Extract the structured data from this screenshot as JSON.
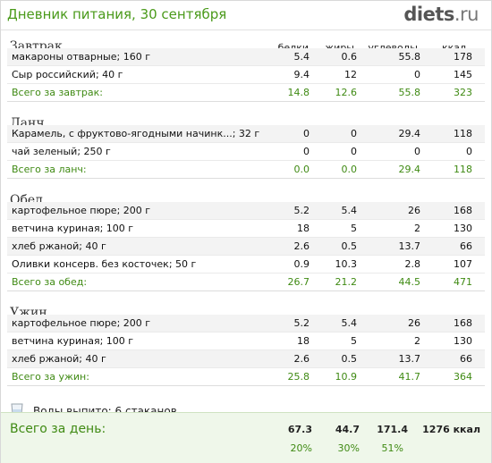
{
  "header": {
    "title": "Дневник питания, 30 сентября",
    "logo_main": "diets",
    "logo_suffix": ".ru"
  },
  "columns": {
    "protein": "белки",
    "fat": "жиры",
    "carbs": "углеводы",
    "kcal": "ккал"
  },
  "meals": [
    {
      "title": "Завтрак",
      "items": [
        {
          "name": "макароны отварные; 160 г",
          "protein": "5.4",
          "fat": "0.6",
          "carbs": "55.8",
          "kcal": "178"
        },
        {
          "name": "Сыр российский; 40 г",
          "protein": "9.4",
          "fat": "12",
          "carbs": "0",
          "kcal": "145"
        }
      ],
      "total": {
        "label": "Всего за завтрак:",
        "protein": "14.8",
        "fat": "12.6",
        "carbs": "55.8",
        "kcal": "323"
      }
    },
    {
      "title": "Ланч",
      "items": [
        {
          "name": "Карамель, с фруктово-ягодными начинк...; 32 г",
          "protein": "0",
          "fat": "0",
          "carbs": "29.4",
          "kcal": "118"
        },
        {
          "name": "чай зеленый; 250 г",
          "protein": "0",
          "fat": "0",
          "carbs": "0",
          "kcal": "0"
        }
      ],
      "total": {
        "label": "Всего за ланч:",
        "protein": "0.0",
        "fat": "0.0",
        "carbs": "29.4",
        "kcal": "118"
      }
    },
    {
      "title": "Обед",
      "items": [
        {
          "name": "картофельное пюре; 200 г",
          "protein": "5.2",
          "fat": "5.4",
          "carbs": "26",
          "kcal": "168"
        },
        {
          "name": "ветчина куриная; 100 г",
          "protein": "18",
          "fat": "5",
          "carbs": "2",
          "kcal": "130"
        },
        {
          "name": "хлеб ржаной; 40 г",
          "protein": "2.6",
          "fat": "0.5",
          "carbs": "13.7",
          "kcal": "66"
        },
        {
          "name": "Оливки консерв. без косточек; 50 г",
          "protein": "0.9",
          "fat": "10.3",
          "carbs": "2.8",
          "kcal": "107"
        }
      ],
      "total": {
        "label": "Всего за обед:",
        "protein": "26.7",
        "fat": "21.2",
        "carbs": "44.5",
        "kcal": "471"
      }
    },
    {
      "title": "Ужин",
      "items": [
        {
          "name": "картофельное пюре; 200 г",
          "protein": "5.2",
          "fat": "5.4",
          "carbs": "26",
          "kcal": "168"
        },
        {
          "name": "ветчина куриная; 100 г",
          "protein": "18",
          "fat": "5",
          "carbs": "2",
          "kcal": "130"
        },
        {
          "name": "хлеб ржаной; 40 г",
          "protein": "2.6",
          "fat": "0.5",
          "carbs": "13.7",
          "kcal": "66"
        }
      ],
      "total": {
        "label": "Всего за ужин:",
        "protein": "25.8",
        "fat": "10.9",
        "carbs": "41.7",
        "kcal": "364"
      }
    }
  ],
  "water": {
    "text": "Воды выпито: 6 стаканов",
    "icon": "glass-icon"
  },
  "day_total": {
    "label": "Всего за день:",
    "protein": "67.3",
    "fat": "44.7",
    "carbs": "171.4",
    "kcal": "1276 ккал",
    "protein_pct": "20%",
    "fat_pct": "30%",
    "carbs_pct": "51%"
  },
  "colors": {
    "title_green": "#4a9a1a",
    "total_green": "#3f8a13",
    "panel_bg": "#eff7ea"
  }
}
